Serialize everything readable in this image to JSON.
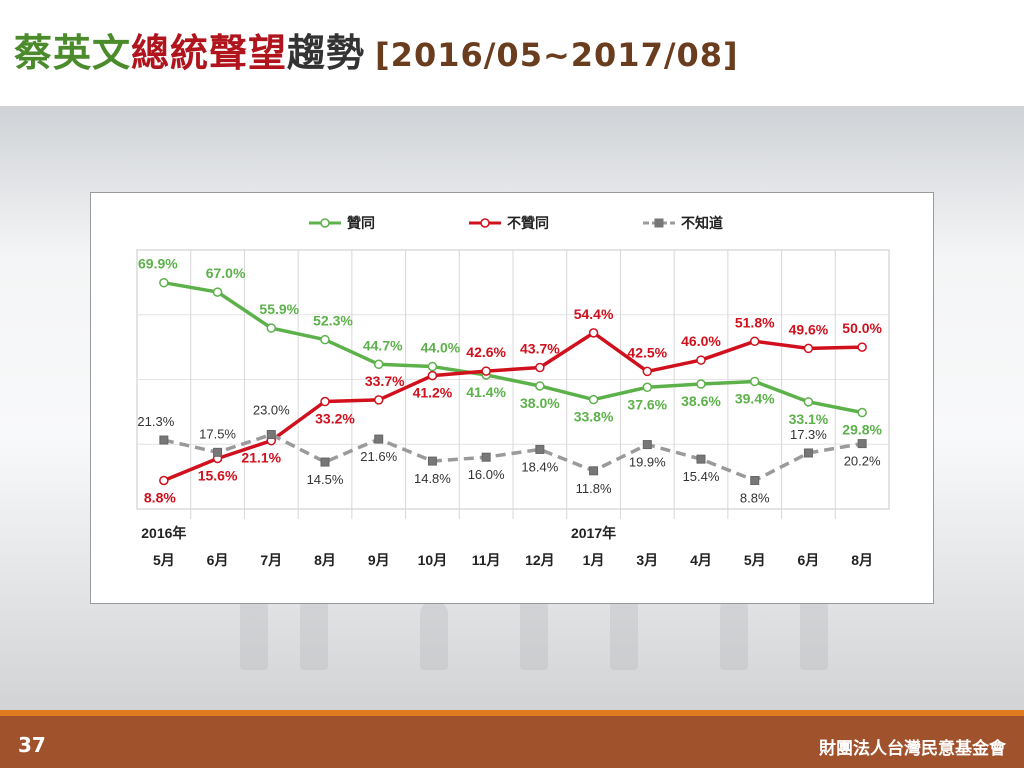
{
  "slide": {
    "title_part1": "蔡英文",
    "title_part2": "總統聲望",
    "title_part3": "趨勢",
    "title_range": "[2016/05~2017/08]",
    "page_number": "37",
    "organization": "財團法人台灣民意基金會"
  },
  "chart_data": {
    "type": "line",
    "title": "",
    "xlabel": "",
    "ylabel": "",
    "ylim": [
      0,
      80
    ],
    "grid": true,
    "legend_position": "top",
    "year_labels": [
      {
        "index": 0,
        "label": "2016年"
      },
      {
        "index": 8,
        "label": "2017年"
      }
    ],
    "categories": [
      "5月",
      "6月",
      "7月",
      "8月",
      "9月",
      "10月",
      "11月",
      "12月",
      "1月",
      "3月",
      "4月",
      "5月",
      "6月",
      "8月"
    ],
    "series": [
      {
        "name": "贊同",
        "color": "#5cb14a",
        "dashed": false,
        "values": [
          69.9,
          67.0,
          55.9,
          52.3,
          44.7,
          44.0,
          41.4,
          38.0,
          33.8,
          37.6,
          38.6,
          39.4,
          33.1,
          29.8
        ],
        "labels": [
          "69.9%",
          "67.0%",
          "55.9%",
          "52.3%",
          "44.7%",
          "44.0%",
          "41.4%",
          "38.0%",
          "33.8%",
          "37.6%",
          "38.6%",
          "39.4%",
          "33.1%",
          "29.8%"
        ]
      },
      {
        "name": "不贊同",
        "color": "#d0101c",
        "dashed": false,
        "values": [
          8.8,
          15.6,
          21.1,
          33.2,
          33.7,
          41.2,
          42.6,
          43.7,
          54.4,
          42.5,
          46.0,
          51.8,
          49.6,
          50.0
        ],
        "labels": [
          "8.8%",
          "15.6%",
          "21.1%",
          "33.2%",
          "33.7%",
          "41.2%",
          "42.6%",
          "43.7%",
          "54.4%",
          "42.5%",
          "46.0%",
          "51.8%",
          "49.6%",
          "50.0%"
        ]
      },
      {
        "name": "不知道",
        "color": "#9a9a9a",
        "dashed": true,
        "values": [
          21.3,
          17.5,
          23.0,
          14.5,
          21.6,
          14.8,
          16.0,
          18.4,
          11.8,
          19.9,
          15.4,
          8.8,
          17.3,
          20.2
        ],
        "labels": [
          "21.3%",
          "17.5%",
          "23.0%",
          "14.5%",
          "21.6%",
          "14.8%",
          "16.0%",
          "18.4%",
          "11.8%",
          "19.9%",
          "15.4%",
          "8.8%",
          "17.3%",
          "20.2%"
        ]
      }
    ]
  }
}
